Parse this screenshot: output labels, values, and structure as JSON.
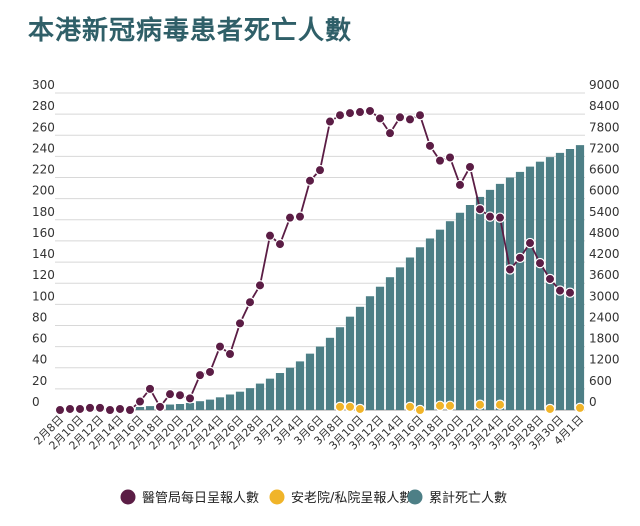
{
  "title": "本港新冠病毒患者死亡人數",
  "colors": {
    "title": "#2f5f68",
    "daily_ha": "#5b1d45",
    "care_home": "#f0b429",
    "cumulative": "#4d7f86",
    "axis_text": "#333333",
    "grid": "#d8d8d8"
  },
  "chart_data": {
    "type": "bar+line",
    "x": [
      "2月8日",
      "2月9日",
      "2月10日",
      "2月11日",
      "2月12日",
      "2月13日",
      "2月14日",
      "2月15日",
      "2月16日",
      "2月17日",
      "2月18日",
      "2月19日",
      "2月20日",
      "2月21日",
      "2月22日",
      "2月23日",
      "2月24日",
      "2月25日",
      "2月26日",
      "2月27日",
      "2月28日",
      "3月1日",
      "3月2日",
      "3月3日",
      "3月4日",
      "3月5日",
      "3月6日",
      "3月7日",
      "3月8日",
      "3月9日",
      "3月10日",
      "3月11日",
      "3月12日",
      "3月13日",
      "3月14日",
      "3月15日",
      "3月16日",
      "3月17日",
      "3月18日",
      "3月19日",
      "3月20日",
      "3月21日",
      "3月22日",
      "3月23日",
      "3月24日",
      "3月25日",
      "3月26日",
      "3月27日",
      "3月28日",
      "3月29日",
      "3月30日",
      "3月31日",
      "4月1日"
    ],
    "x_tick_labels": [
      "2月8日",
      "2月10日",
      "2月12日",
      "2月14日",
      "2月16日",
      "2月18日",
      "2月20日",
      "2月22日",
      "2月24日",
      "2月26日",
      "2月28日",
      "3月2日",
      "3月4日",
      "3月6日",
      "3月8日",
      "3月10日",
      "3月12日",
      "3月14日",
      "3月16日",
      "3月18日",
      "3月20日",
      "3月22日",
      "3月24日",
      "3月26日",
      "3月28日",
      "3月30日",
      "4月1日"
    ],
    "left_axis": {
      "ylim": [
        0,
        300
      ],
      "ticks": [
        0,
        20,
        40,
        60,
        80,
        100,
        120,
        140,
        160,
        180,
        200,
        220,
        240,
        260,
        280,
        300
      ]
    },
    "right_axis": {
      "ylim": [
        0,
        9000
      ],
      "ticks": [
        0,
        600,
        1200,
        1800,
        2400,
        3000,
        3600,
        4200,
        4800,
        5400,
        6000,
        6600,
        7200,
        7800,
        8400,
        9000
      ]
    },
    "grid": true,
    "legend_position": "bottom",
    "series": [
      {
        "name": "醫管局每日呈報人數",
        "type": "line",
        "axis": "left",
        "values": [
          0,
          1,
          1,
          2,
          2,
          0,
          1,
          0,
          8,
          20,
          3,
          15,
          14,
          11,
          33,
          36,
          60,
          53,
          82,
          102,
          118,
          165,
          157,
          182,
          183,
          217,
          227,
          273,
          279,
          281,
          282,
          283,
          276,
          262,
          277,
          275,
          279,
          250,
          236,
          239,
          213,
          230,
          190,
          183,
          182,
          133,
          144,
          158,
          139,
          124,
          113,
          111,
          null
        ]
      },
      {
        "name": "安老院/私院呈報人數",
        "type": "scatter",
        "axis": "left",
        "values": [
          null,
          null,
          null,
          null,
          null,
          null,
          null,
          null,
          null,
          null,
          null,
          null,
          null,
          null,
          null,
          null,
          null,
          null,
          null,
          null,
          null,
          null,
          null,
          null,
          null,
          null,
          null,
          null,
          3,
          3,
          1,
          null,
          null,
          null,
          null,
          3,
          0,
          null,
          4,
          4,
          null,
          null,
          5,
          null,
          5,
          null,
          null,
          null,
          null,
          1,
          null,
          null,
          2
        ]
      },
      {
        "name": "累計死亡人數",
        "type": "bar",
        "axis": "right",
        "values": [
          30,
          33,
          40,
          45,
          50,
          55,
          58,
          65,
          85,
          110,
          140,
          155,
          170,
          200,
          250,
          295,
          360,
          440,
          520,
          620,
          750,
          890,
          1050,
          1200,
          1380,
          1600,
          1800,
          2050,
          2350,
          2650,
          2930,
          3230,
          3500,
          3770,
          4050,
          4330,
          4620,
          4870,
          5120,
          5360,
          5600,
          5820,
          6050,
          6250,
          6420,
          6600,
          6760,
          6910,
          7050,
          7180,
          7300,
          7410,
          7520
        ]
      }
    ]
  }
}
